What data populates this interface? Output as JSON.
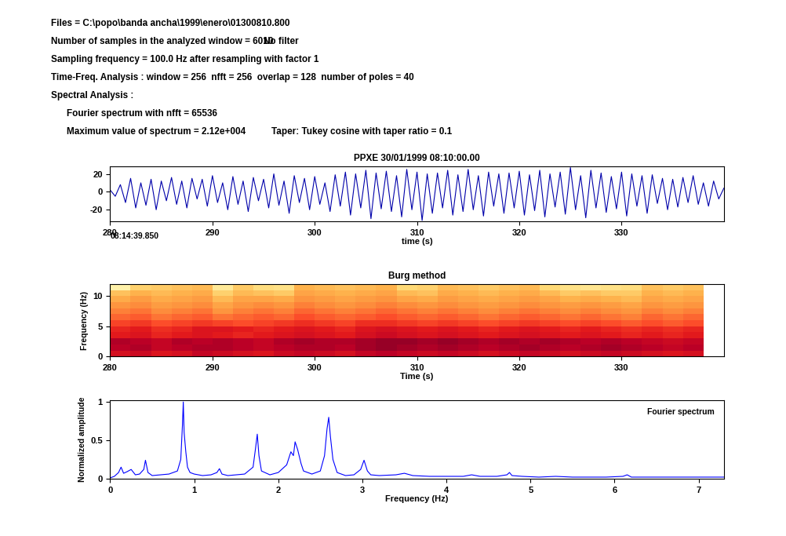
{
  "header": {
    "files": "Files = C:\\popo\\banda ancha\\1999\\enero\\01300810.800",
    "samples": "Number of samples in the analyzed window = 6010",
    "filter": "No filter",
    "sampling": "Sampling frequency = 100.0 Hz after resampling with factor 1",
    "time_freq": "Time-Freq. Analysis : window = 256  nfft = 256  overlap = 128  number of poles = 40",
    "spectral": "Spectral Analysis :",
    "fourier": "Fourier spectrum with nfft = 65536",
    "maximum": "Maximum value of spectrum = 2.12e+004",
    "taper": "Taper: Tukey cosine with taper ratio = 0.1"
  },
  "chart_data": [
    {
      "type": "line",
      "title": "PPXE 30/01/1999 08:10:00.00",
      "x_label": "time (s)",
      "annotation": "08:14:39.850",
      "color": "#0000aa",
      "x": [
        280,
        280.5,
        281,
        281.5,
        282,
        282.5,
        283,
        283.5,
        284,
        284.5,
        285,
        285.5,
        286,
        286.5,
        287,
        287.5,
        288,
        288.5,
        289,
        289.5,
        290,
        290.5,
        291,
        291.5,
        292,
        292.5,
        293,
        293.5,
        294,
        294.5,
        295,
        295.5,
        296,
        296.5,
        297,
        297.5,
        298,
        298.5,
        299,
        299.5,
        300,
        300.5,
        301,
        301.5,
        302,
        302.5,
        303,
        303.5,
        304,
        304.5,
        305,
        305.5,
        306,
        306.5,
        307,
        307.5,
        308,
        308.5,
        309,
        309.5,
        310,
        310.5,
        311,
        311.5,
        312,
        312.5,
        313,
        313.5,
        314,
        314.5,
        315,
        315.5,
        316,
        316.5,
        317,
        317.5,
        318,
        318.5,
        319,
        319.5,
        320,
        320.5,
        321,
        321.5,
        322,
        322.5,
        323,
        323.5,
        324,
        324.5,
        325,
        325.5,
        326,
        326.5,
        327,
        327.5,
        328,
        328.5,
        329,
        329.5,
        330,
        330.5,
        331,
        331.5,
        332,
        332.5,
        333,
        333.5,
        334,
        334.5,
        335,
        335.5,
        336,
        336.5,
        337,
        337.5,
        338,
        338.5,
        339,
        339.5,
        340
      ],
      "values": [
        2,
        -5,
        8,
        -12,
        15,
        -18,
        10,
        -15,
        14,
        -20,
        12,
        -10,
        16,
        -14,
        12,
        -18,
        15,
        -8,
        14,
        -16,
        18,
        -12,
        10,
        -20,
        17,
        -14,
        12,
        -22,
        16,
        -10,
        14,
        -18,
        20,
        -15,
        12,
        -24,
        18,
        -12,
        15,
        -20,
        17,
        -14,
        10,
        -22,
        19,
        -16,
        22,
        -26,
        20,
        -18,
        24,
        -30,
        21,
        -19,
        23,
        -22,
        18,
        -28,
        25,
        -20,
        22,
        -32,
        20,
        -24,
        21,
        -18,
        24,
        -26,
        19,
        -22,
        25,
        -20,
        18,
        -27,
        22,
        -16,
        20,
        -24,
        21,
        -18,
        23,
        -26,
        19,
        -21,
        24,
        -28,
        20,
        -17,
        22,
        -25,
        27,
        -20,
        18,
        -29,
        24,
        -18,
        21,
        -23,
        17,
        -19,
        22,
        -27,
        20,
        -16,
        18,
        -24,
        19,
        -13,
        15,
        -20,
        14,
        -17,
        16,
        -12,
        18,
        -14,
        10,
        -16,
        12,
        -8,
        4
      ],
      "xlim": [
        280,
        340
      ],
      "xticks": [
        280,
        290,
        300,
        310,
        320,
        330
      ],
      "ylim": [
        -33,
        28
      ],
      "yticks": [
        -20,
        0,
        20
      ]
    },
    {
      "type": "heatmap",
      "title": "Burg method",
      "x_label": "Time (s)",
      "y_label": "Frequency (Hz)",
      "x_edges": [
        280,
        282,
        284,
        286,
        288,
        290,
        292,
        294,
        296,
        298,
        300,
        302,
        304,
        306,
        308,
        310,
        312,
        314,
        316,
        318,
        320,
        322,
        324,
        326,
        328,
        330,
        332,
        334,
        336,
        338
      ],
      "y_edges": [
        0,
        1,
        2,
        3,
        4,
        5,
        6,
        7,
        8,
        9,
        10,
        11,
        12
      ],
      "cells": [
        [
          32,
          33,
          31,
          32,
          34,
          33,
          32,
          31,
          33,
          34,
          33,
          32,
          34,
          35,
          34,
          33,
          34,
          33,
          32,
          33,
          34,
          33,
          32,
          33,
          34,
          33,
          32,
          31,
          32
        ],
        [
          35,
          36,
          34,
          35,
          36,
          36,
          35,
          34,
          35,
          36,
          36,
          35,
          37,
          38,
          37,
          36,
          37,
          36,
          35,
          36,
          37,
          36,
          35,
          36,
          37,
          36,
          35,
          34,
          35
        ],
        [
          36,
          35,
          34,
          36,
          35,
          36,
          35,
          34,
          36,
          37,
          36,
          36,
          37,
          38,
          38,
          37,
          38,
          37,
          36,
          37,
          36,
          37,
          36,
          35,
          36,
          35,
          34,
          33,
          34
        ],
        [
          30,
          31,
          29,
          30,
          31,
          30,
          29,
          30,
          31,
          32,
          31,
          30,
          32,
          33,
          32,
          31,
          32,
          31,
          30,
          31,
          32,
          31,
          30,
          31,
          30,
          29,
          30,
          29,
          30
        ],
        [
          29,
          30,
          28,
          29,
          31,
          31,
          30,
          29,
          30,
          31,
          30,
          29,
          31,
          32,
          31,
          30,
          31,
          30,
          29,
          30,
          31,
          30,
          29,
          30,
          29,
          28,
          29,
          28,
          29
        ],
        [
          26,
          27,
          25,
          26,
          27,
          26,
          25,
          26,
          27,
          28,
          27,
          26,
          28,
          28,
          27,
          26,
          27,
          26,
          25,
          26,
          27,
          26,
          25,
          26,
          25,
          24,
          25,
          24,
          25
        ],
        [
          23,
          24,
          22,
          23,
          24,
          22,
          23,
          24,
          23,
          25,
          24,
          23,
          24,
          25,
          24,
          23,
          24,
          23,
          22,
          23,
          24,
          23,
          22,
          23,
          22,
          21,
          23,
          22,
          23
        ],
        [
          21,
          22,
          20,
          21,
          22,
          19,
          21,
          22,
          21,
          23,
          22,
          21,
          22,
          23,
          22,
          21,
          22,
          21,
          20,
          21,
          22,
          21,
          20,
          21,
          20,
          19,
          21,
          20,
          21
        ],
        [
          19,
          20,
          18,
          19,
          20,
          17,
          19,
          20,
          19,
          21,
          20,
          19,
          20,
          21,
          20,
          19,
          20,
          19,
          18,
          19,
          20,
          19,
          18,
          19,
          18,
          17,
          19,
          18,
          19
        ],
        [
          16,
          18,
          16,
          17,
          18,
          14,
          17,
          17,
          16,
          19,
          18,
          17,
          18,
          19,
          17,
          16,
          18,
          17,
          16,
          17,
          18,
          17,
          15,
          16,
          15,
          14,
          17,
          16,
          17
        ],
        [
          13,
          15,
          14,
          15,
          16,
          11,
          14,
          13,
          12,
          17,
          16,
          15,
          16,
          17,
          14,
          13,
          16,
          15,
          14,
          15,
          16,
          14,
          12,
          13,
          12,
          12,
          15,
          14,
          15
        ],
        [
          4,
          11,
          12,
          13,
          14,
          6,
          12,
          9,
          8,
          15,
          14,
          13,
          14,
          15,
          10,
          11,
          14,
          13,
          12,
          13,
          14,
          10,
          8,
          7,
          8,
          9,
          13,
          12,
          13
        ]
      ],
      "value_range": [
        0,
        40
      ],
      "xlim": [
        280,
        340
      ],
      "xticks": [
        280,
        290,
        300,
        310,
        320,
        330
      ],
      "ylim": [
        0,
        12
      ],
      "yticks": [
        0,
        5,
        10
      ]
    },
    {
      "type": "line",
      "x_label": "Frequency (Hz)",
      "y_label": "Normalized amplitude",
      "annotation": "Fourier spectrum",
      "color": "#0000ff",
      "x": [
        0,
        0.05,
        0.1,
        0.13,
        0.16,
        0.2,
        0.25,
        0.3,
        0.35,
        0.4,
        0.42,
        0.45,
        0.5,
        0.6,
        0.7,
        0.8,
        0.84,
        0.86,
        0.87,
        0.88,
        0.9,
        0.92,
        0.95,
        1.0,
        1.1,
        1.2,
        1.27,
        1.3,
        1.33,
        1.4,
        1.5,
        1.6,
        1.7,
        1.73,
        1.75,
        1.77,
        1.8,
        1.9,
        2.0,
        2.1,
        2.15,
        2.18,
        2.2,
        2.23,
        2.27,
        2.3,
        2.4,
        2.5,
        2.55,
        2.58,
        2.6,
        2.62,
        2.65,
        2.7,
        2.8,
        2.9,
        2.98,
        3.02,
        3.06,
        3.1,
        3.2,
        3.4,
        3.5,
        3.6,
        3.8,
        4.0,
        4.2,
        4.3,
        4.4,
        4.6,
        4.72,
        4.75,
        4.78,
        4.9,
        5.1,
        5.3,
        5.5,
        5.7,
        5.9,
        6.1,
        6.15,
        6.2,
        6.4,
        6.6,
        6.8,
        7.0,
        7.2,
        7.3
      ],
      "values": [
        0.01,
        0.03,
        0.08,
        0.15,
        0.07,
        0.09,
        0.12,
        0.05,
        0.06,
        0.12,
        0.24,
        0.08,
        0.04,
        0.05,
        0.06,
        0.1,
        0.25,
        0.7,
        1.0,
        0.6,
        0.35,
        0.15,
        0.08,
        0.06,
        0.04,
        0.05,
        0.08,
        0.13,
        0.06,
        0.04,
        0.05,
        0.06,
        0.15,
        0.4,
        0.58,
        0.3,
        0.1,
        0.05,
        0.08,
        0.18,
        0.35,
        0.3,
        0.48,
        0.38,
        0.2,
        0.1,
        0.06,
        0.1,
        0.3,
        0.65,
        0.8,
        0.55,
        0.25,
        0.08,
        0.04,
        0.05,
        0.12,
        0.24,
        0.1,
        0.05,
        0.04,
        0.05,
        0.07,
        0.04,
        0.03,
        0.03,
        0.03,
        0.05,
        0.03,
        0.03,
        0.05,
        0.08,
        0.04,
        0.03,
        0.02,
        0.03,
        0.02,
        0.02,
        0.02,
        0.03,
        0.05,
        0.02,
        0.02,
        0.02,
        0.02,
        0.02,
        0.02,
        0.02
      ],
      "xlim": [
        0,
        7.3
      ],
      "xticks": [
        0,
        1,
        2,
        3,
        4,
        5,
        6,
        7
      ],
      "ylim": [
        0,
        1.02
      ],
      "yticks": [
        0,
        0.5,
        1
      ]
    }
  ]
}
